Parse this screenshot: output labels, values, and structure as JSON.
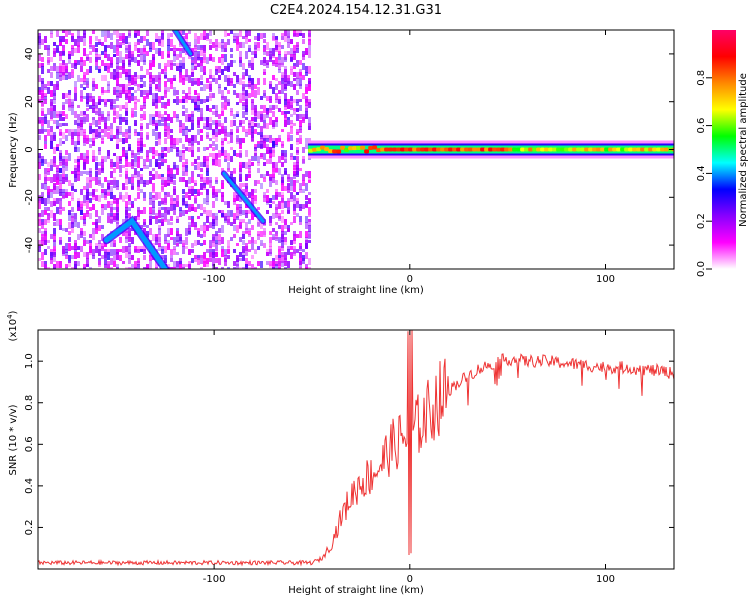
{
  "chart_data": [
    {
      "type": "heatmap",
      "title": "C2E4.2024.154.12.31.G31",
      "xlabel": "Height of straight line (km)",
      "ylabel": "Frequency (Hz)",
      "xlim": [
        -190,
        135
      ],
      "ylim": [
        -50,
        50
      ],
      "xticks": [
        -100,
        0,
        100
      ],
      "yticks": [
        -40,
        -20,
        0,
        20,
        40
      ],
      "grid": false,
      "colorbar": {
        "label": "Normalized spectral amplitude",
        "range": [
          0,
          1
        ],
        "ticks": [
          0.0,
          0.2,
          0.4,
          0.6,
          0.8
        ],
        "colormap": [
          "#ffffff",
          "#ff00ff",
          "#8800ff",
          "#0000ff",
          "#00ffff",
          "#00ff00",
          "#ffff00",
          "#ff8800",
          "#ff0000",
          "#ff0066"
        ]
      },
      "features": {
        "noise_region_x": [
          -190,
          -52
        ],
        "signal_line": {
          "frequency": 0,
          "x_range": [
            -52,
            135
          ],
          "peak_amplitude": 0.85
        },
        "diagonal_trace": {
          "x": [
            -95,
            -75
          ],
          "y": [
            -10,
            -30
          ]
        },
        "arc_trace": {
          "x": [
            -155,
            -142,
            -125
          ],
          "y": [
            -38,
            -30,
            -50
          ]
        },
        "upper_trace": {
          "x": [
            -120,
            -112
          ],
          "y": [
            50,
            40
          ]
        }
      }
    },
    {
      "type": "line",
      "xlabel": "Height of straight line (km)",
      "ylabel": "SNR (10 * v/v)",
      "yscale_label": "(x10",
      "yscale_exp": "4",
      "yscale_close": ")",
      "xlim": [
        -190,
        135
      ],
      "ylim": [
        0,
        1.15
      ],
      "xticks": [
        -100,
        0,
        100
      ],
      "yticks": [
        0.2,
        0.4,
        0.6,
        0.8,
        1.0
      ],
      "grid": false,
      "color": "#ee3333",
      "series": [
        {
          "x": [
            -190,
            -160,
            -130,
            -100,
            -70,
            -50,
            -45,
            -40,
            -35,
            -30,
            -25,
            -20,
            -15,
            -10,
            -5,
            0,
            5,
            10,
            15,
            20,
            25,
            30,
            35,
            40,
            45,
            50,
            60,
            70,
            80,
            90,
            100,
            110,
            120,
            130,
            135
          ],
          "values": [
            0.03,
            0.03,
            0.03,
            0.03,
            0.03,
            0.03,
            0.05,
            0.12,
            0.25,
            0.35,
            0.42,
            0.45,
            0.5,
            0.58,
            0.62,
            0.65,
            0.7,
            0.76,
            0.82,
            0.86,
            0.9,
            0.93,
            0.96,
            0.98,
            1.0,
            1.01,
            1.0,
            1.0,
            0.99,
            0.98,
            0.97,
            0.97,
            0.96,
            0.95,
            0.94
          ]
        }
      ]
    }
  ]
}
